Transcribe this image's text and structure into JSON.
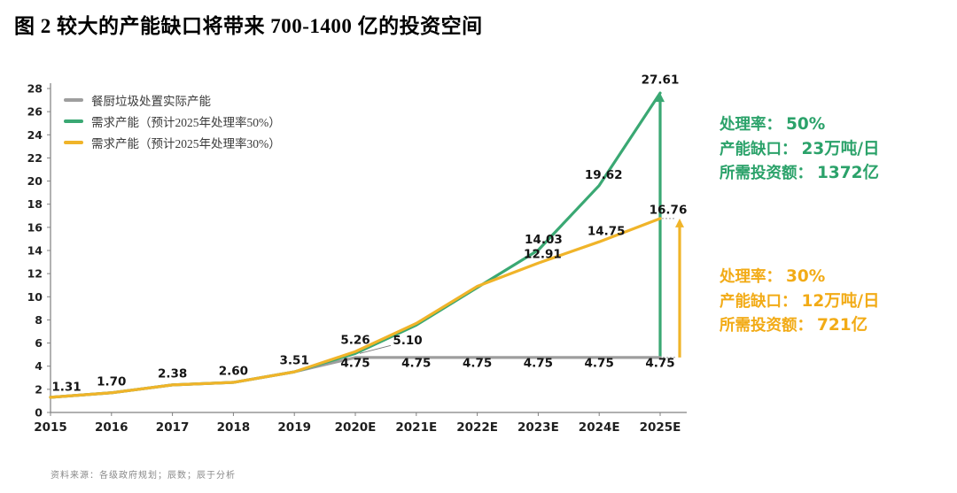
{
  "title": "图 2 较大的产能缺口将带来 700-1400 亿的投资空间",
  "footer": "资料来源：各级政府规划；辰数；辰于分析",
  "chart_data": {
    "type": "line",
    "categories": [
      "2015",
      "2016",
      "2017",
      "2018",
      "2019",
      "2020E",
      "2021E",
      "2022E",
      "2023E",
      "2024E",
      "2025E"
    ],
    "ylim": [
      0,
      28
    ],
    "ytick_step": 2,
    "grid": false,
    "legend_position": "top-left",
    "series": [
      {
        "name": "餐厨垃圾处置实际产能",
        "color": "#9e9e9e",
        "values": [
          1.31,
          1.7,
          2.38,
          2.6,
          3.51,
          4.75,
          4.75,
          4.75,
          4.75,
          4.75,
          4.75
        ],
        "labels": [
          null,
          null,
          null,
          null,
          null,
          "4.75",
          "4.75",
          "4.75",
          "4.75",
          "4.75",
          "4.75"
        ]
      },
      {
        "name": "需求产能（预计2025年处理率50%）",
        "color": "#3aa873",
        "values": [
          1.31,
          1.7,
          2.38,
          2.6,
          3.51,
          5.1,
          7.55,
          10.8,
          14.03,
          19.62,
          27.61
        ],
        "labels": [
          "1.31",
          "1.70",
          "2.38",
          "2.60",
          "3.51",
          "5.10",
          null,
          null,
          "14.03",
          "19.62",
          "27.61"
        ]
      },
      {
        "name": "需求产能（预计2025年处理率30%）",
        "color": "#f0b429",
        "values": [
          1.31,
          1.7,
          2.38,
          2.6,
          3.51,
          5.26,
          7.7,
          10.9,
          12.91,
          14.75,
          16.76
        ],
        "labels": [
          null,
          null,
          null,
          null,
          null,
          "5.26",
          null,
          null,
          "12.91",
          "14.75",
          "16.76"
        ]
      }
    ],
    "gap_arrows": [
      {
        "x_index": 10,
        "x_offset": 0,
        "from": 4.75,
        "to": 27.61,
        "color": "#3aa873"
      },
      {
        "x_index": 10,
        "x_offset": 22,
        "from": 4.75,
        "to": 16.76,
        "color": "#f0b429"
      }
    ]
  },
  "annotations": [
    {
      "color": "#2ba26a",
      "lines": [
        {
          "label": "处理率：",
          "value": "50%"
        },
        {
          "label": "产能缺口：",
          "value": "23万吨/日"
        },
        {
          "label": "所需投资额：",
          "value": "1372亿"
        }
      ]
    },
    {
      "color": "#f2ab16",
      "lines": [
        {
          "label": "处理率：",
          "value": "30%"
        },
        {
          "label": "产能缺口：",
          "value": "12万吨/日"
        },
        {
          "label": "所需投资额：",
          "value": "721亿"
        }
      ]
    }
  ]
}
